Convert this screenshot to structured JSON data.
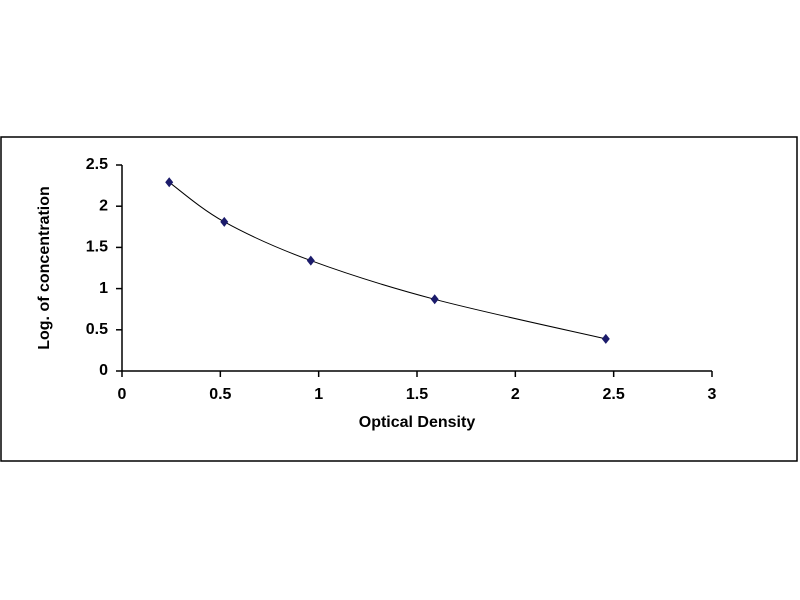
{
  "chart_data": {
    "type": "scatter",
    "xlabel": "Optical Density",
    "ylabel": "Log. of concentration",
    "x": [
      0.24,
      0.52,
      0.96,
      1.59,
      2.46
    ],
    "series": [
      {
        "color": "#1b1b6b",
        "values": [
          2.29,
          1.81,
          1.34,
          0.87,
          0.39
        ]
      }
    ],
    "line_style": "smooth",
    "line_color": "#000000",
    "xlim": [
      0,
      3
    ],
    "xticks": [
      0,
      0.5,
      1,
      1.5,
      2,
      2.5,
      3
    ],
    "ylim": [
      0,
      2.5
    ],
    "yticks": [
      0,
      0.5,
      1,
      1.5,
      2,
      2.5
    ],
    "grid": false
  }
}
